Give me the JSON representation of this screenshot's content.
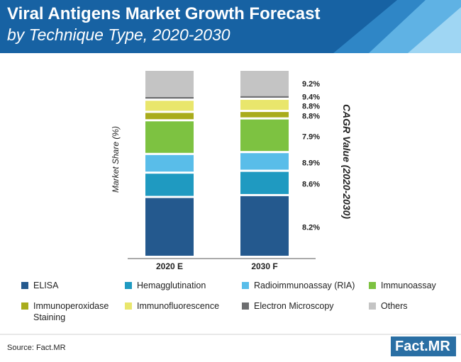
{
  "header": {
    "title_line1": "Viral Antigens Market Growth Forecast",
    "title_line2": "by Technique Type, 2020-2030"
  },
  "chart_data": {
    "type": "stacked_bar",
    "ylabel": "Market Share (%)",
    "right_label": "CAGR Value (2020-2030)",
    "categories": [
      "2020 E",
      "2030 F"
    ],
    "ylim": [
      0,
      100
    ],
    "series": [
      {
        "name": "ELISA",
        "color": "#24598e",
        "values": [
          32,
          33
        ],
        "cagr": "8.2%"
      },
      {
        "name": "Hemagglutination",
        "color": "#1f9ac1",
        "values": [
          13,
          13
        ],
        "cagr": "8.6%"
      },
      {
        "name": "Radioimmunoassay (RIA)",
        "color": "#59bde9",
        "values": [
          10,
          10
        ],
        "cagr": "8.9%"
      },
      {
        "name": "Immunoassay",
        "color": "#7dc241",
        "values": [
          18,
          18
        ],
        "cagr": "7.9%"
      },
      {
        "name": "Immunoperoxidase Staining",
        "color": "#a9ac1c",
        "values": [
          4.5,
          4
        ],
        "cagr": "8.8%"
      },
      {
        "name": "Immunofluorescence",
        "color": "#e9e66c",
        "values": [
          6.5,
          6.5
        ],
        "cagr": "8.8%"
      },
      {
        "name": "Electron Microscopy",
        "color": "#6d6e70",
        "values": [
          2,
          2
        ],
        "cagr": "9.4%"
      },
      {
        "name": "Others",
        "color": "#c4c4c4",
        "values": [
          14,
          13.5
        ],
        "cagr": "9.2%"
      }
    ]
  },
  "legend": {
    "items": [
      "ELISA",
      "Hemagglutination",
      "Radioimmunoassay (RIA)",
      "Immunoassay",
      "Immunoperoxidase Staining",
      "Immunofluorescence",
      "Electron Microscopy",
      "Others"
    ],
    "immunoperoxidase_line1": "Immunoperoxidase",
    "immunoperoxidase_line2": "Staining"
  },
  "source": "Source: Fact.MR",
  "logo": {
    "part1": "Fact",
    "part2": ".MR"
  }
}
